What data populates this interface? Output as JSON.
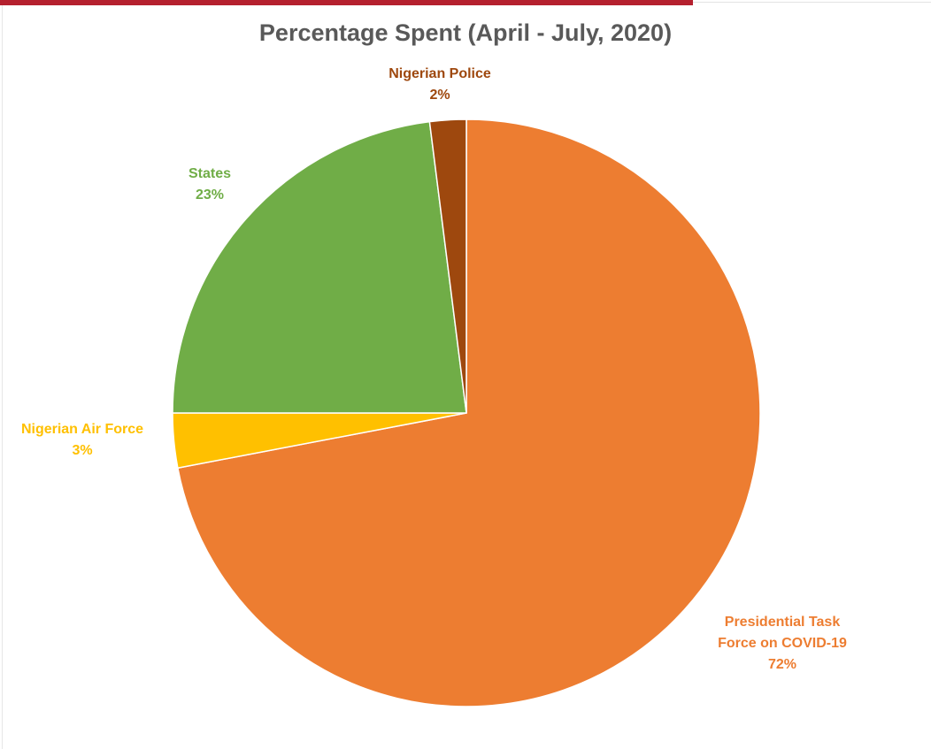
{
  "chart_data": {
    "type": "pie",
    "title": "Percentage Spent (April - July, 2020)",
    "slices": [
      {
        "name": "Presidential Task Force on COVID-19",
        "label_lines": [
          "Presidential Task",
          "Force on COVID-19"
        ],
        "value": 72,
        "value_label": "72%",
        "color": "#ed7d31",
        "label_color": "#ed7d31"
      },
      {
        "name": "Nigerian Air Force",
        "label_lines": [
          "Nigerian Air Force"
        ],
        "value": 3,
        "value_label": "3%",
        "color": "#ffc000",
        "label_color": "#ffc000"
      },
      {
        "name": "States",
        "label_lines": [
          "States"
        ],
        "value": 23,
        "value_label": "23%",
        "color": "#70ad47",
        "label_color": "#70ad47"
      },
      {
        "name": "Nigerian Police",
        "label_lines": [
          "Nigerian Police"
        ],
        "value": 2,
        "value_label": "2%",
        "color": "#9e480e",
        "label_color": "#9e480e"
      }
    ],
    "start_angle_deg": 0,
    "direction": "clockwise",
    "legend": "none",
    "data_labels": "outside"
  },
  "colors": {
    "header_bar": "#b5202e",
    "title_text": "#595959"
  }
}
